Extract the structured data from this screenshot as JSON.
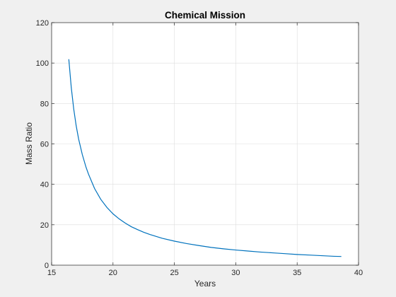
{
  "chart_data": {
    "type": "line",
    "title": "Chemical Mission",
    "xlabel": "Years",
    "ylabel": "Mass Ratio",
    "xlim": [
      15,
      40
    ],
    "ylim": [
      0,
      120
    ],
    "xticks": [
      15,
      20,
      25,
      30,
      35,
      40
    ],
    "yticks": [
      0,
      20,
      40,
      60,
      80,
      100,
      120
    ],
    "grid": true,
    "legend": "none",
    "colors": {
      "line": "#0072bd",
      "grid": "#dedede",
      "axes": "#262626",
      "plot_background": "#ffffff",
      "figure_background": "#f0f0f0"
    },
    "series": [
      {
        "x": [
          16.4,
          16.6,
          16.8,
          17.0,
          17.2,
          17.5,
          17.8,
          18.0,
          18.5,
          19.0,
          19.5,
          20.0,
          20.5,
          21.0,
          21.5,
          22.0,
          22.5,
          23.0,
          24.0,
          25.0,
          26.0,
          27.0,
          28.0,
          29.0,
          30.0,
          31.0,
          32.0,
          33.0,
          34.0,
          35.0,
          36.0,
          37.0,
          38.0,
          38.6
        ],
        "y": [
          101.9,
          87.9,
          77.3,
          69.0,
          62.4,
          54.7,
          48.5,
          45.1,
          37.9,
          32.6,
          28.6,
          25.4,
          22.9,
          20.8,
          19.0,
          17.6,
          16.3,
          15.2,
          13.3,
          11.9,
          10.7,
          9.7,
          8.8,
          8.1,
          7.5,
          7.0,
          6.5,
          6.1,
          5.7,
          5.3,
          5.0,
          4.7,
          4.4,
          4.3
        ]
      }
    ]
  }
}
